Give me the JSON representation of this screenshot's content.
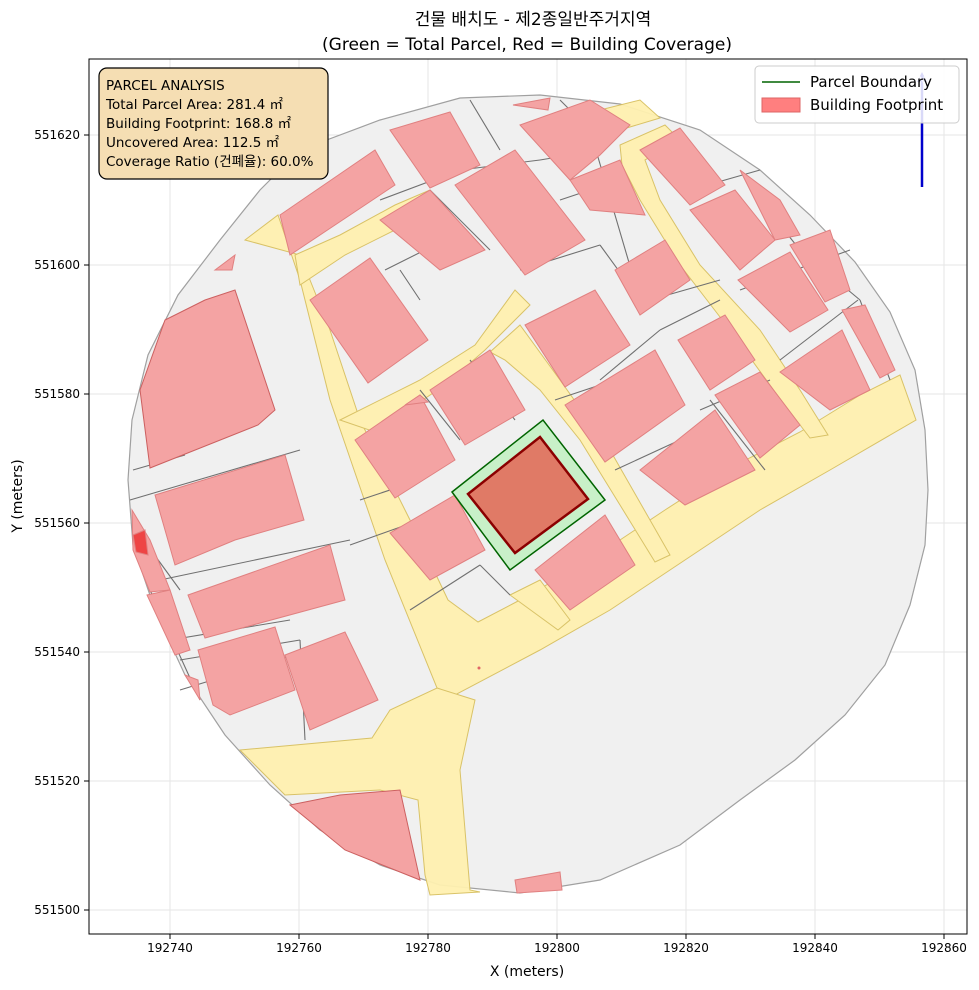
{
  "title": {
    "line1": "건물 배치도 - 제2종일반주거지역",
    "line2": "(Green = Total Parcel, Red = Building Coverage)"
  },
  "axes": {
    "xlabel": "X (meters)",
    "ylabel": "Y (meters)",
    "xticks": [
      "192740",
      "192760",
      "192780",
      "192800",
      "192820",
      "192840",
      "192860"
    ],
    "yticks": [
      "551500",
      "551520",
      "551540",
      "551560",
      "551580",
      "551600",
      "551620"
    ],
    "grid": true
  },
  "info_box": {
    "heading": "PARCEL ANALYSIS",
    "total_area": "Total Parcel Area: 281.4 ㎡",
    "footprint": "Building Footprint: 168.8 ㎡",
    "uncovered": "Uncovered Area: 112.5 ㎡",
    "ratio": "Coverage Ratio (건폐율): 60.0%"
  },
  "legend": {
    "placement": "top-right",
    "parcel_boundary": "Parcel Boundary",
    "building_footprint": "Building Footprint"
  },
  "colors": {
    "parcel_fill": "#c8f0c8",
    "parcel_edge": "#006400",
    "footprint_fill": "#e07a66",
    "footprint_edge": "#8b0000",
    "neighbor_building": "#f4a3a3",
    "road": "#fff1b0",
    "ground": "#f0f0f0",
    "info_box_bg": "#f5deb3",
    "north_arrow": "#0000cc"
  },
  "north_arrow_icon": "north-arrow-icon"
}
